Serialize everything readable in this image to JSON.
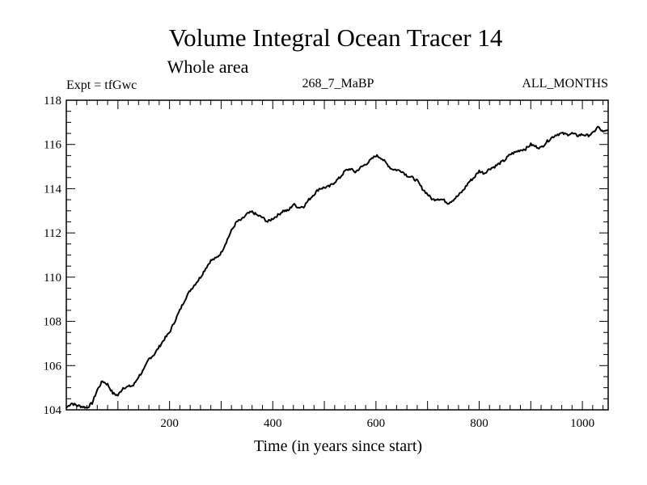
{
  "chart_data": {
    "type": "line",
    "title": "Volume Integral Ocean Tracer 14",
    "subtitle": "Whole area",
    "expt_label": "Expt = tfGwc",
    "run_label": "268_7_MaBP",
    "months_label": "ALL_MONTHS",
    "xlabel": "Time (in years since start)",
    "ylabel": "",
    "xlim": [
      0,
      1050
    ],
    "ylim": [
      104,
      118
    ],
    "x_ticks": [
      200,
      400,
      600,
      800,
      1000
    ],
    "y_ticks": [
      104,
      106,
      108,
      110,
      112,
      114,
      116,
      118
    ],
    "grid": false,
    "series": [
      {
        "points": [
          [
            0,
            104.1
          ],
          [
            10,
            104.3
          ],
          [
            20,
            104.2
          ],
          [
            30,
            104.15
          ],
          [
            40,
            104.1
          ],
          [
            50,
            104.3
          ],
          [
            60,
            104.9
          ],
          [
            70,
            105.3
          ],
          [
            80,
            105.15
          ],
          [
            90,
            104.75
          ],
          [
            100,
            104.65
          ],
          [
            110,
            105.0
          ],
          [
            120,
            105.05
          ],
          [
            130,
            105.1
          ],
          [
            140,
            105.5
          ],
          [
            150,
            105.8
          ],
          [
            160,
            106.3
          ],
          [
            170,
            106.5
          ],
          [
            180,
            106.85
          ],
          [
            190,
            107.2
          ],
          [
            200,
            107.5
          ],
          [
            210,
            108.0
          ],
          [
            220,
            108.5
          ],
          [
            230,
            109.0
          ],
          [
            240,
            109.4
          ],
          [
            250,
            109.7
          ],
          [
            260,
            110.0
          ],
          [
            270,
            110.4
          ],
          [
            280,
            110.75
          ],
          [
            290,
            110.85
          ],
          [
            300,
            111.1
          ],
          [
            310,
            111.6
          ],
          [
            320,
            112.1
          ],
          [
            330,
            112.5
          ],
          [
            340,
            112.6
          ],
          [
            350,
            112.85
          ],
          [
            360,
            112.95
          ],
          [
            370,
            112.8
          ],
          [
            380,
            112.7
          ],
          [
            390,
            112.5
          ],
          [
            400,
            112.65
          ],
          [
            410,
            112.8
          ],
          [
            420,
            113.0
          ],
          [
            430,
            113.0
          ],
          [
            440,
            113.3
          ],
          [
            450,
            113.15
          ],
          [
            460,
            113.2
          ],
          [
            470,
            113.5
          ],
          [
            480,
            113.75
          ],
          [
            490,
            114.0
          ],
          [
            500,
            114.05
          ],
          [
            510,
            114.1
          ],
          [
            520,
            114.3
          ],
          [
            530,
            114.5
          ],
          [
            540,
            114.8
          ],
          [
            550,
            114.9
          ],
          [
            560,
            114.75
          ],
          [
            570,
            114.95
          ],
          [
            580,
            115.1
          ],
          [
            590,
            115.3
          ],
          [
            600,
            115.5
          ],
          [
            610,
            115.4
          ],
          [
            620,
            115.15
          ],
          [
            630,
            114.9
          ],
          [
            640,
            114.85
          ],
          [
            650,
            114.8
          ],
          [
            660,
            114.6
          ],
          [
            670,
            114.5
          ],
          [
            680,
            114.35
          ],
          [
            690,
            114.0
          ],
          [
            700,
            113.75
          ],
          [
            710,
            113.5
          ],
          [
            720,
            113.55
          ],
          [
            730,
            113.5
          ],
          [
            740,
            113.35
          ],
          [
            750,
            113.5
          ],
          [
            760,
            113.7
          ],
          [
            770,
            113.95
          ],
          [
            780,
            114.3
          ],
          [
            790,
            114.5
          ],
          [
            800,
            114.8
          ],
          [
            810,
            114.7
          ],
          [
            820,
            114.9
          ],
          [
            830,
            115.0
          ],
          [
            840,
            115.15
          ],
          [
            850,
            115.3
          ],
          [
            860,
            115.55
          ],
          [
            870,
            115.65
          ],
          [
            880,
            115.75
          ],
          [
            890,
            115.8
          ],
          [
            900,
            116.0
          ],
          [
            910,
            115.9
          ],
          [
            920,
            115.85
          ],
          [
            930,
            116.1
          ],
          [
            940,
            116.3
          ],
          [
            950,
            116.45
          ],
          [
            960,
            116.5
          ],
          [
            970,
            116.45
          ],
          [
            980,
            116.5
          ],
          [
            990,
            116.4
          ],
          [
            1000,
            116.45
          ],
          [
            1010,
            116.4
          ],
          [
            1020,
            116.5
          ],
          [
            1030,
            116.8
          ],
          [
            1040,
            116.55
          ],
          [
            1050,
            116.65
          ]
        ]
      }
    ]
  }
}
